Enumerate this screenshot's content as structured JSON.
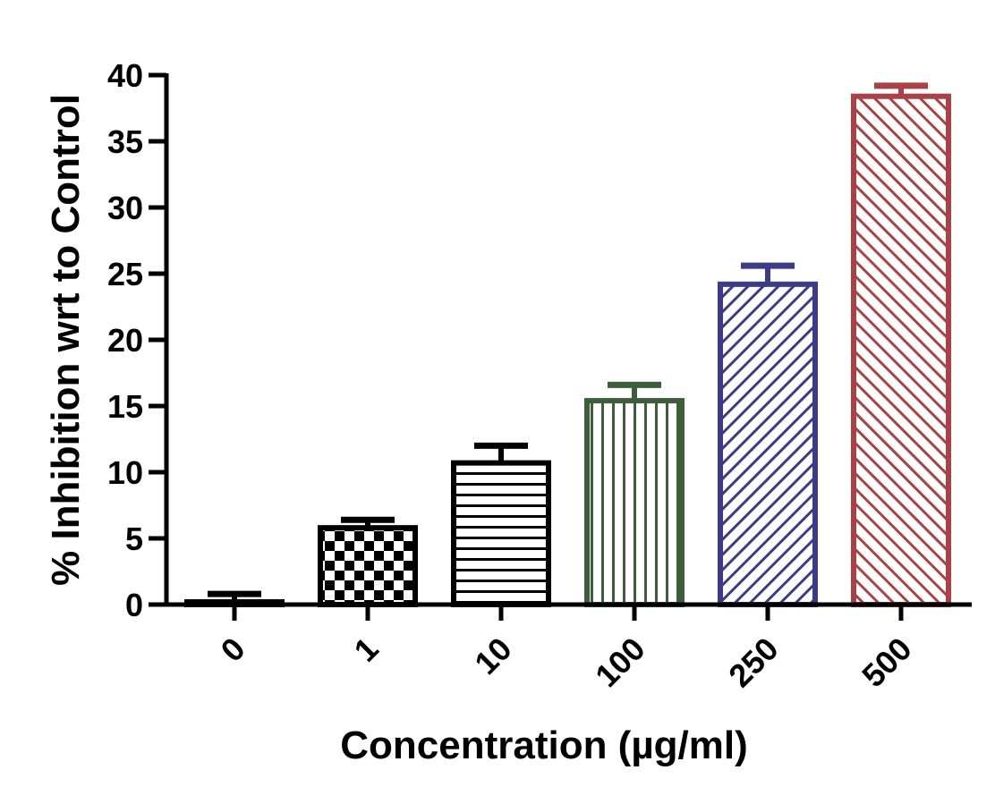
{
  "chart_data": {
    "type": "bar",
    "title": "",
    "xlabel": "Concentration (µg/ml)",
    "ylabel": "% Inhibition wrt to Control",
    "categories": [
      "0",
      "1",
      "10",
      "100",
      "250",
      "500"
    ],
    "values": [
      0.2,
      5.8,
      10.7,
      15.4,
      24.2,
      38.4
    ],
    "errors": [
      0.6,
      0.6,
      1.3,
      1.2,
      1.4,
      0.8
    ],
    "ylim": [
      0,
      40
    ],
    "yticks": [
      0,
      5,
      10,
      15,
      20,
      25,
      30,
      35,
      40
    ],
    "grid": false,
    "legend": "none",
    "bar_colors": [
      "#000000",
      "#000000",
      "#000000",
      "#3d5e3a",
      "#3b3b86",
      "#a94246"
    ],
    "bar_patterns": [
      "solid",
      "checker",
      "horizontal-lines",
      "vertical-lines",
      "diagonal-up",
      "diagonal-down"
    ]
  }
}
